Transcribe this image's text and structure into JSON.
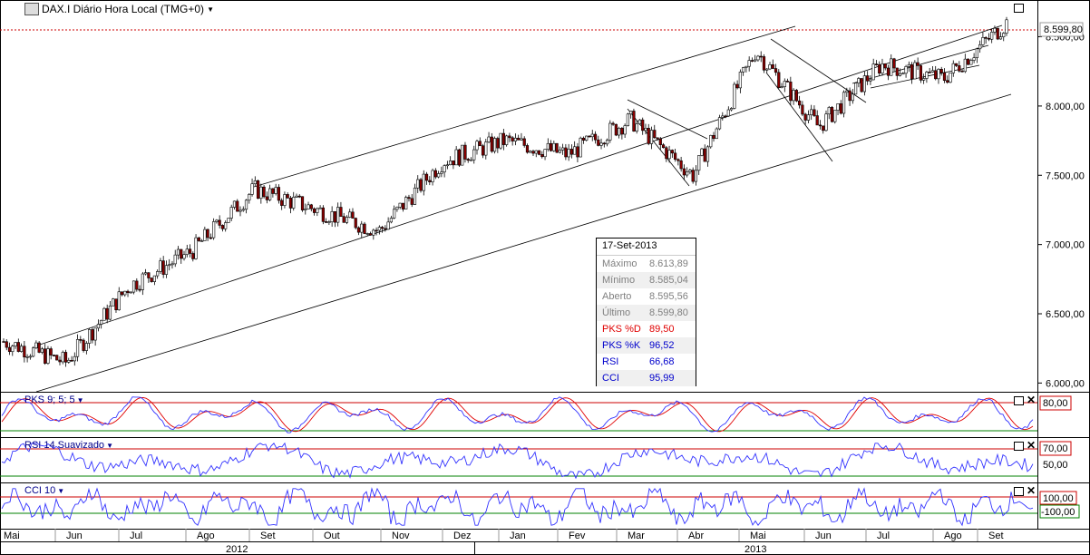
{
  "window": {
    "title": "DAX.I Diário Hora Local (TMG+0)"
  },
  "last_price_label": "8.599,80",
  "info_box": {
    "date": "17-Set-2013",
    "rows": [
      {
        "label": "Máximo",
        "value": "8.613,89",
        "color": "#808080"
      },
      {
        "label": "Mínimo",
        "value": "8.585,04",
        "color": "#808080"
      },
      {
        "label": "Aberto",
        "value": "8.595,56",
        "color": "#808080"
      },
      {
        "label": "Último",
        "value": "8.599,80",
        "color": "#808080"
      },
      {
        "label": "PKS %D",
        "value": "89,50",
        "color": "#e00000"
      },
      {
        "label": "PKS %K",
        "value": "96,52",
        "color": "#0000cc"
      },
      {
        "label": "RSI",
        "value": "66,68",
        "color": "#0000cc"
      },
      {
        "label": "CCI",
        "value": "95,99",
        "color": "#0000cc"
      }
    ]
  },
  "panes": {
    "pks": {
      "label": "PKS 9; 5; 5",
      "level_label": "80,00"
    },
    "rsi": {
      "label": "RSI 14 Suavizado",
      "level_label": "70,00",
      "mid_label": "50,00"
    },
    "cci": {
      "label": "CCI 10",
      "upper_label": "100,00",
      "lower_label": "-100,00"
    }
  },
  "colors": {
    "up_candle": "#ffffff",
    "down_candle": "#8b0000",
    "indicator_blue": "#3333ff",
    "indicator_red": "#e00000",
    "level_red": "#cc0000",
    "level_green": "#008000"
  },
  "chart_data": {
    "type": "candlestick",
    "y_ticks": [
      "6.000,00",
      "6.500,00",
      "7.000,00",
      "7.500,00",
      "8.000,00",
      "8.500,00"
    ],
    "ylim": [
      5950,
      8700
    ],
    "x_month_labels": [
      "Mai",
      "Jun",
      "Jul",
      "Ago",
      "Set",
      "Out",
      "Nov",
      "Dez",
      "Jan",
      "Fev",
      "Mar",
      "Abr",
      "Mai",
      "Jun",
      "Jul",
      "Ago",
      "Set"
    ],
    "x_year_labels": [
      "2012",
      "2013"
    ],
    "approx_closes": [
      {
        "month": "Mai-2012",
        "value": 6300
      },
      {
        "month": "Jun-2012",
        "value": 6150
      },
      {
        "month": "Jul-2012",
        "value": 6700
      },
      {
        "month": "Ago-2012",
        "value": 6950
      },
      {
        "month": "Set-2012",
        "value": 7400
      },
      {
        "month": "Out-2012",
        "value": 7250
      },
      {
        "month": "Nov-2012",
        "value": 7100
      },
      {
        "month": "Dez-2012",
        "value": 7600
      },
      {
        "month": "Jan-2013",
        "value": 7750
      },
      {
        "month": "Fev-2013",
        "value": 7650
      },
      {
        "month": "Mar-2013",
        "value": 7900
      },
      {
        "month": "Abr-2013",
        "value": 7500
      },
      {
        "month": "Mai-2013",
        "value": 8400
      },
      {
        "month": "Jun-2013",
        "value": 7850
      },
      {
        "month": "Jul-2013",
        "value": 8300
      },
      {
        "month": "Ago-2013",
        "value": 8200
      },
      {
        "month": "Set-2013",
        "value": 8599.8
      }
    ],
    "last_close": 8599.8,
    "pks_levels": [
      80
    ],
    "rsi_levels": [
      70,
      50
    ],
    "cci_levels": [
      100,
      -100
    ]
  }
}
